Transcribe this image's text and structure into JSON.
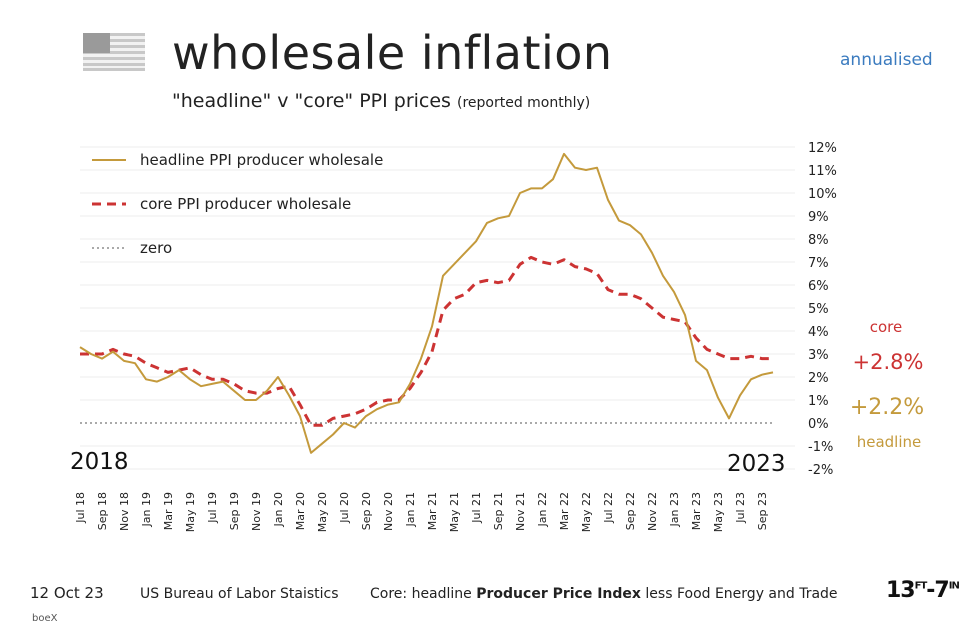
{
  "header": {
    "title": "wholesale inflation",
    "subtitle_main": "\"headline\" v \"core\"  PPI prices ",
    "subtitle_small": "(reported monthly)",
    "badge": "annualised",
    "flag_icon": "us-flag-icon"
  },
  "chart_data": {
    "type": "line",
    "title": "wholesale inflation",
    "ylim": [
      -2,
      12
    ],
    "yticks": [
      "12%",
      "11%",
      "10%",
      "9%",
      "8%",
      "7%",
      "6%",
      "5%",
      "4%",
      "3%",
      "2%",
      "1%",
      "0%",
      "-1%",
      "-2%"
    ],
    "x_tick_labels": [
      "Jul 18",
      "Sep 18",
      "Nov 18",
      "Jan 19",
      "Mar 19",
      "May 19",
      "Jul 19",
      "Sep 19",
      "Nov 19",
      "Jan 20",
      "Mar 20",
      "May 20",
      "Jul 20",
      "Sep 20",
      "Nov 20",
      "Jan 21",
      "Mar 21",
      "May 21",
      "Jul 21",
      "Sep 21",
      "Nov 21",
      "Jan 22",
      "Mar 22",
      "May 22",
      "Jul 22",
      "Sep 22",
      "Nov 22",
      "Jan 23",
      "Mar 23",
      "May 23",
      "Jul 23",
      "Sep 23"
    ],
    "start_year_label": "2018",
    "end_year_label": "2023",
    "series": [
      {
        "name": "headline PPI producer wholesale",
        "color": "#c49a3c",
        "dash": "solid",
        "values": [
          3.3,
          3.0,
          2.8,
          3.1,
          2.7,
          2.6,
          1.9,
          1.8,
          2.0,
          2.3,
          1.9,
          1.6,
          1.7,
          1.8,
          1.4,
          1.0,
          1.0,
          1.4,
          2.0,
          1.2,
          0.3,
          -1.3,
          -0.9,
          -0.5,
          0.0,
          -0.2,
          0.3,
          0.6,
          0.8,
          0.9,
          1.7,
          2.8,
          4.2,
          6.4,
          6.9,
          7.4,
          7.9,
          8.7,
          8.9,
          9.0,
          10.0,
          10.2,
          10.2,
          10.6,
          11.7,
          11.1,
          11.0,
          11.1,
          9.7,
          8.8,
          8.6,
          8.2,
          7.4,
          6.4,
          5.7,
          4.7,
          2.7,
          2.3,
          1.1,
          0.2,
          1.2,
          1.9,
          2.1,
          2.2
        ],
        "current_label": "+2.2%",
        "tag": "headline"
      },
      {
        "name": "core PPI producer wholesale",
        "color": "#cc3333",
        "dash": "dashed",
        "values": [
          3.0,
          3.0,
          3.0,
          3.2,
          3.0,
          2.9,
          2.6,
          2.4,
          2.2,
          2.3,
          2.4,
          2.1,
          1.9,
          1.9,
          1.7,
          1.4,
          1.3,
          1.3,
          1.5,
          1.6,
          0.8,
          -0.1,
          -0.1,
          0.2,
          0.3,
          0.4,
          0.6,
          0.9,
          1.0,
          1.0,
          1.5,
          2.2,
          3.1,
          4.9,
          5.4,
          5.6,
          6.1,
          6.2,
          6.1,
          6.2,
          6.9,
          7.2,
          7.0,
          6.9,
          7.1,
          6.8,
          6.7,
          6.5,
          5.8,
          5.6,
          5.6,
          5.4,
          5.0,
          4.6,
          4.5,
          4.4,
          3.7,
          3.2,
          3.0,
          2.8,
          2.8,
          2.9,
          2.8,
          2.8
        ],
        "current_label": "+2.8%",
        "tag": "core"
      },
      {
        "name": "zero",
        "color": "#555555",
        "dash": "dotted",
        "values": [
          0,
          0
        ]
      }
    ]
  },
  "footer": {
    "date": "12 Oct 23",
    "source": "US Bureau of Labor Staistics",
    "note_prefix": "Core: headline ",
    "note_bold": "Producer Price Index",
    "note_suffix": " less Food Energy and Trade",
    "credit": "boeX",
    "brand_a": "13",
    "brand_sup_a": "FT",
    "brand_b": "7",
    "brand_sup_b": "IN"
  }
}
